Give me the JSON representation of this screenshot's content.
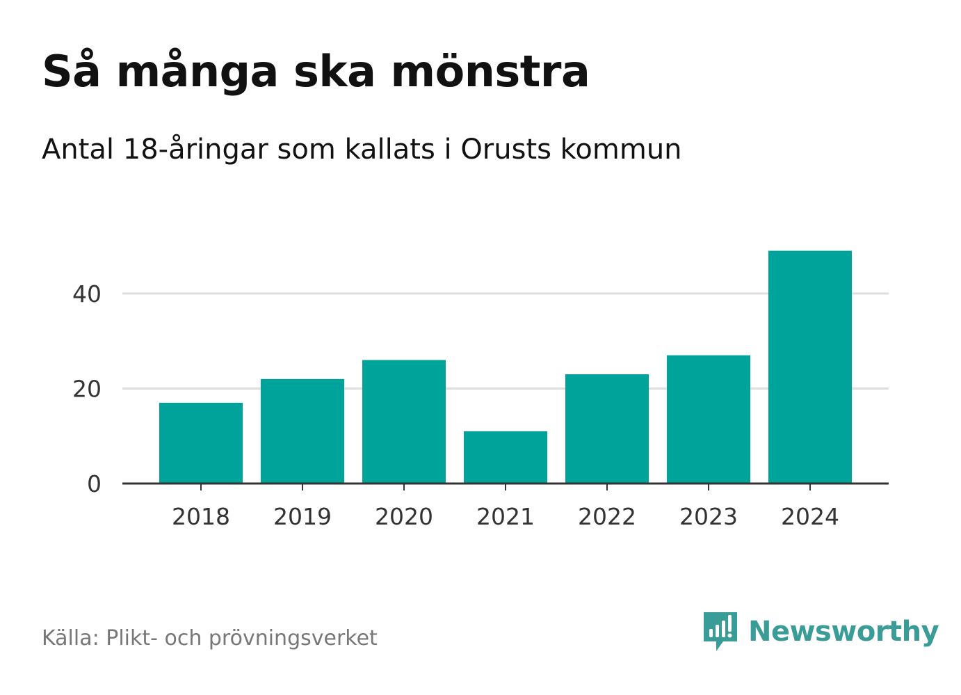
{
  "chart_data": {
    "type": "bar",
    "title": "Så många ska mönstra",
    "subtitle": "Antal 18-åringar som kallats i Orusts kommun",
    "categories": [
      "2018",
      "2019",
      "2020",
      "2021",
      "2022",
      "2023",
      "2024"
    ],
    "values": [
      17,
      22,
      26,
      11,
      23,
      27,
      49
    ],
    "xlabel": "",
    "ylabel": "",
    "ylim": [
      0,
      52
    ],
    "yticks": [
      0,
      20,
      40
    ],
    "grid": true,
    "bar_color": "#00a39a",
    "gridline_color": "#dddddd",
    "axis_color": "#333333"
  },
  "footer": {
    "source": "Källa: Plikt- och prövningsverket",
    "brand": "Newsworthy",
    "brand_color": "#3a9c96",
    "brand_icon": "newsworthy-logo-icon"
  }
}
